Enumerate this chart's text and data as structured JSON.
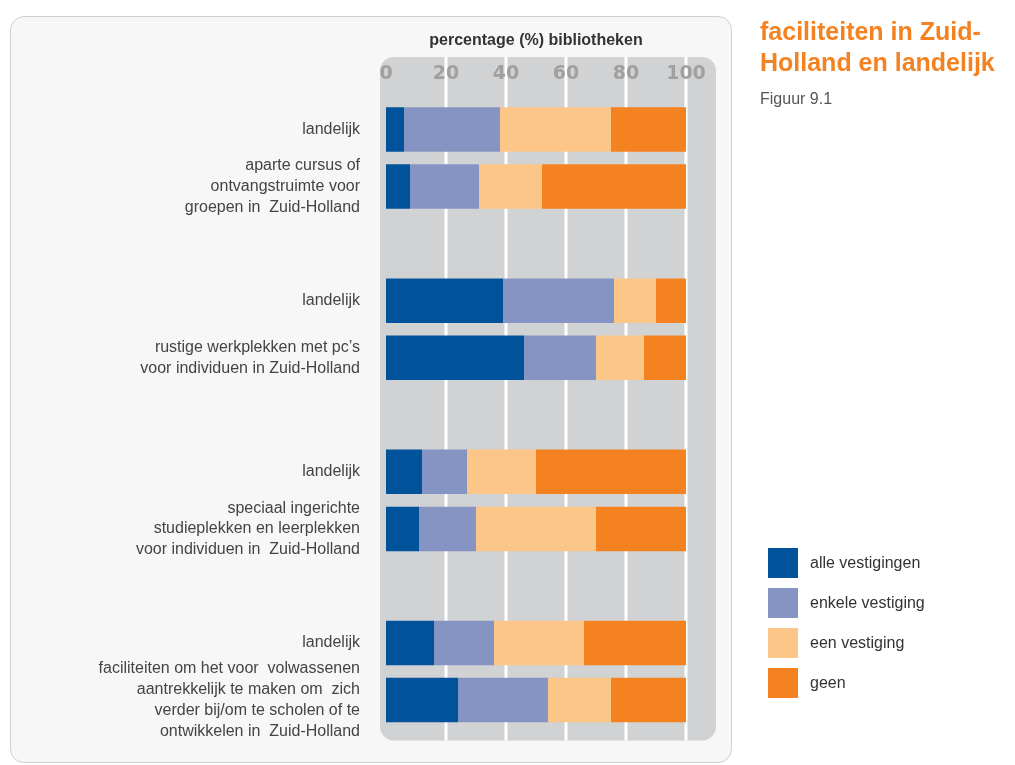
{
  "chart_data": {
    "type": "bar",
    "orientation": "horizontal",
    "stacked": true,
    "title": "faciliteiten in Zuid-\nHolland en landelijk",
    "subtitle": "Figuur 9.1",
    "xlabel": "percentage (%) bibliotheken",
    "categories": [
      "landelijk",
      "aparte cursus of\nontvangstruimte voor\ngroepen in  Zuid-Holland",
      null,
      "landelijk",
      "rustige werkplekken met pc’s\nvoor individuen in Zuid-Holland",
      null,
      "landelijk",
      "speciaal ingerichte\nstudieplekken en leerplekken\nvoor individuen in  Zuid-Holland",
      null,
      "landelijk",
      "faciliteiten om het voor  volwassenen\naantrekkelijk te maken om  zich\nverder bij/om te scholen of te\nontwikkelen in  Zuid-Holland"
    ],
    "series": [
      {
        "name": "alle vestigingen",
        "color": "#00529b",
        "values": [
          6,
          8,
          null,
          39,
          46,
          null,
          12,
          11,
          null,
          16,
          24
        ]
      },
      {
        "name": "enkele vestiging",
        "color": "#8694c3",
        "values": [
          32,
          23,
          null,
          37,
          24,
          null,
          15,
          19,
          null,
          20,
          30
        ]
      },
      {
        "name": "een vestiging",
        "color": "#fcc689",
        "values": [
          37,
          21,
          null,
          14,
          16,
          null,
          23,
          40,
          null,
          30,
          21
        ]
      },
      {
        "name": "geen",
        "color": "#f58220",
        "values": [
          25,
          48,
          null,
          10,
          14,
          null,
          50,
          30,
          null,
          34,
          25
        ]
      }
    ],
    "xlim": [
      0,
      100
    ],
    "xticks": [
      0,
      20,
      40,
      60,
      80,
      100
    ],
    "grid": "x",
    "legend": "bottom right"
  }
}
